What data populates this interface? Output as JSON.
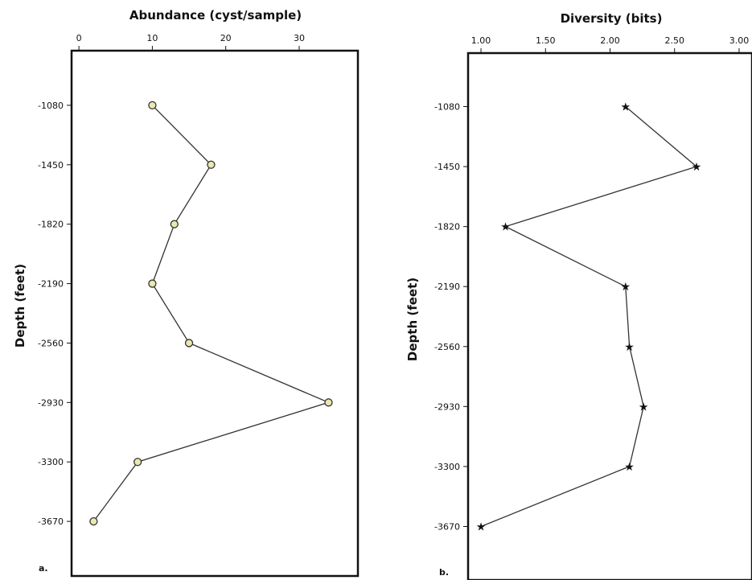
{
  "chart_data": [
    {
      "type": "line",
      "panel_label": "a.",
      "title": "Abundance (cyst/sample)",
      "xlabel": "Abundance (cyst/sample)",
      "ylabel": "Depth (feet)",
      "xlim": [
        -1,
        38
      ],
      "ylim": [
        -4010,
        -740
      ],
      "x_ticks": [
        0,
        10,
        20,
        30
      ],
      "y_ticks": [
        -1080,
        -1450,
        -1820,
        -2190,
        -2560,
        -2930,
        -3300,
        -3670
      ],
      "marker": "circle",
      "marker_color": "#e8e8b0",
      "line_color": "#333333",
      "points": [
        {
          "depth": -1080,
          "value": 10
        },
        {
          "depth": -1450,
          "value": 18
        },
        {
          "depth": -1820,
          "value": 13
        },
        {
          "depth": -2190,
          "value": 10
        },
        {
          "depth": -2560,
          "value": 15
        },
        {
          "depth": -2930,
          "value": 34
        },
        {
          "depth": -3300,
          "value": 8
        },
        {
          "depth": -3670,
          "value": 2
        }
      ]
    },
    {
      "type": "line",
      "panel_label": "b.",
      "title": "Diversity (bits)",
      "xlabel": "Diversity (bits)",
      "ylabel": "Depth (feet)",
      "xlim": [
        0.9,
        3.1
      ],
      "ylim": [
        -4000,
        -750
      ],
      "x_ticks": [
        "1.00",
        "1.50",
        "2.00",
        "2.50",
        "3.00"
      ],
      "y_ticks": [
        -1080,
        -1450,
        -1820,
        -2190,
        -2560,
        -2930,
        -3300,
        -3670
      ],
      "marker": "star",
      "line_color": "#333333",
      "points": [
        {
          "depth": -1080,
          "value": 2.12
        },
        {
          "depth": -1450,
          "value": 2.67
        },
        {
          "depth": -1820,
          "value": 1.19
        },
        {
          "depth": -2190,
          "value": 2.12
        },
        {
          "depth": -2560,
          "value": 2.15
        },
        {
          "depth": -2930,
          "value": 2.26
        },
        {
          "depth": -3300,
          "value": 2.15
        },
        {
          "depth": -3670,
          "value": 1.0
        }
      ]
    }
  ]
}
